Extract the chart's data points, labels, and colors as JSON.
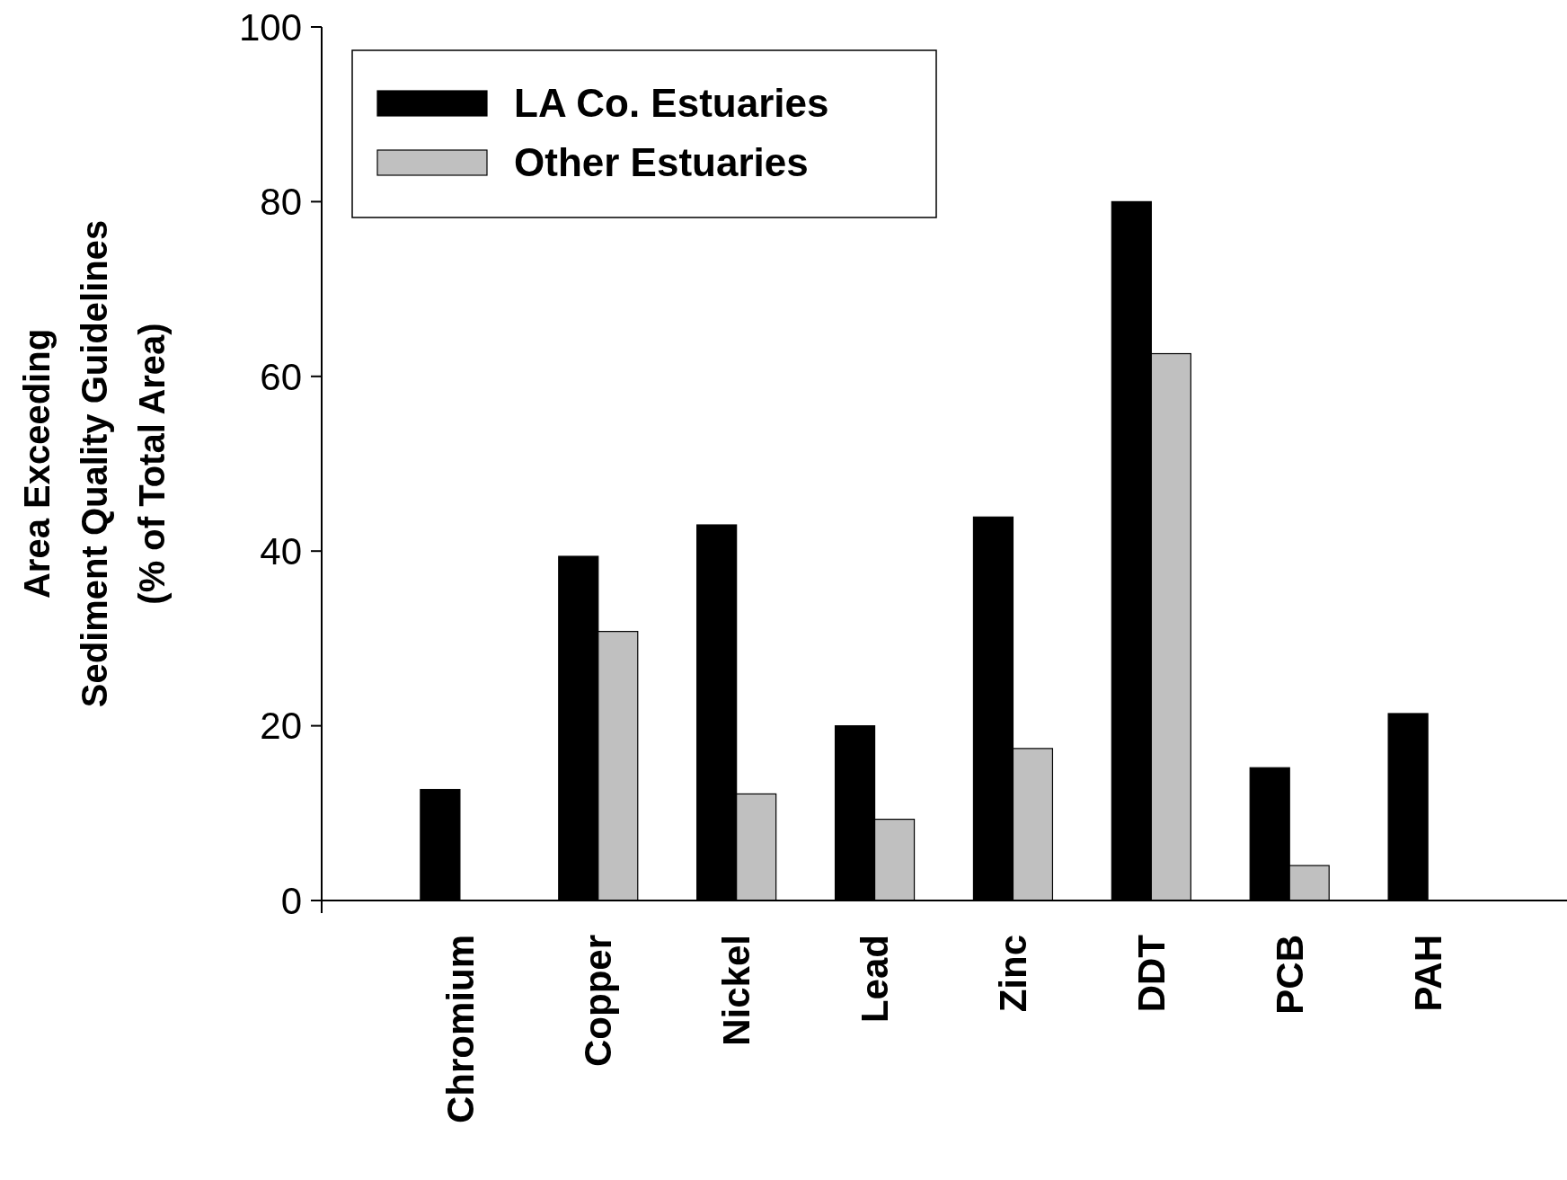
{
  "chart_data": {
    "type": "bar",
    "ylabel": "Area Exceeding\nSediment Quality Guidelines\n(% of Total Area)",
    "categories": [
      "Chromium",
      "Copper",
      "Nickel",
      "Lead",
      "Zinc",
      "DDT",
      "PCB",
      "PAH"
    ],
    "series": [
      {
        "name": "LA Co. Estuaries",
        "color": "#000000",
        "values": [
          12.7,
          39.4,
          43.0,
          20.0,
          43.9,
          80.0,
          15.2,
          21.4
        ]
      },
      {
        "name": "Other Estuaries",
        "color": "#c0c0c0",
        "values": [
          null,
          30.8,
          12.2,
          9.3,
          17.4,
          62.6,
          4.0,
          null
        ]
      }
    ],
    "ylim": [
      0,
      100
    ],
    "yticks": [
      0,
      20,
      40,
      60,
      80,
      100
    ],
    "legend": "top left"
  }
}
